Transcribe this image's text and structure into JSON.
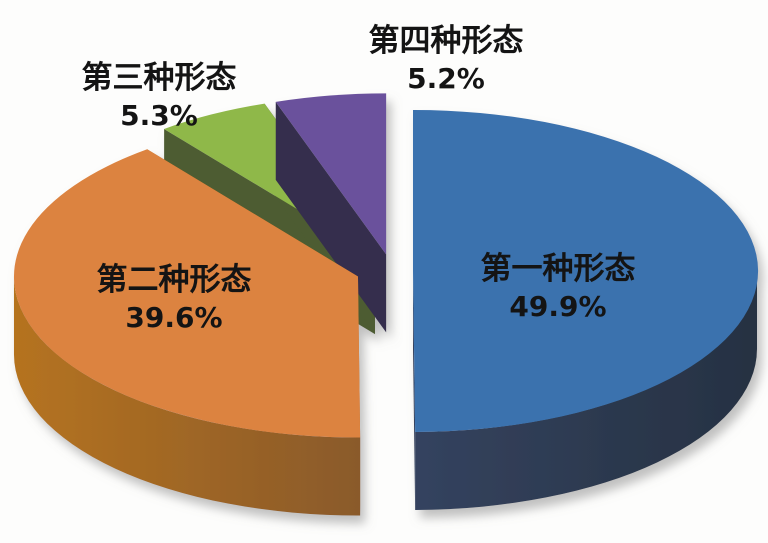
{
  "chart_data": {
    "type": "pie",
    "style": "3d-exploded",
    "title": "",
    "legend": "none",
    "start_angle_deg": 0,
    "direction": "clockwise",
    "background": "#FDFDFC",
    "label_format": "name + percent",
    "slices": [
      {
        "label": "第一种形态",
        "pct": "49.9%",
        "value": 49.9,
        "top_color": "#3B72AE",
        "side_color": "#34435F",
        "side_color_dark": "#263142"
      },
      {
        "label": "第二种形态",
        "pct": "39.6%",
        "value": 39.6,
        "top_color": "#DC8340",
        "side_color": "#B5731F",
        "side_color_dark": "#8A5A2B"
      },
      {
        "label": "第三种形态",
        "pct": "5.3%",
        "value": 5.3,
        "top_color": "#8FB84A",
        "side_color": "#4D5C30",
        "side_color_dark": "#47542C"
      },
      {
        "label": "第四种形态",
        "pct": "5.2%",
        "value": 5.2,
        "top_color": "#6B519C",
        "side_color": "#352E4D",
        "side_color_dark": "#2E2843"
      }
    ]
  }
}
